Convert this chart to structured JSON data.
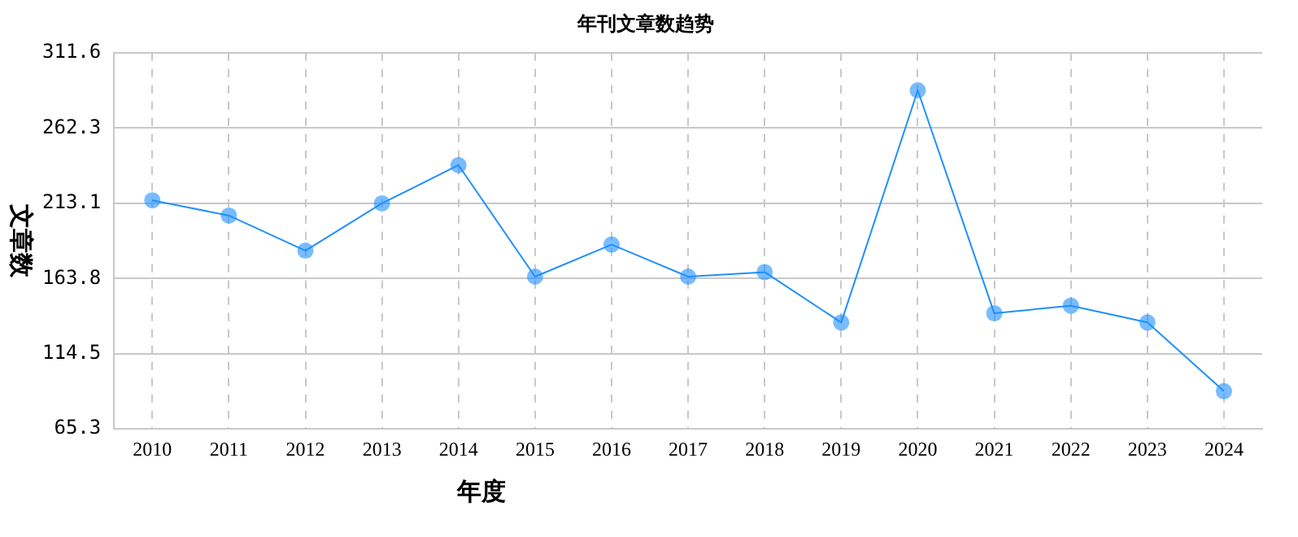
{
  "chart_data": {
    "type": "line",
    "title": "年刊文章数趋势",
    "xlabel": "年度",
    "ylabel": "文章数",
    "categories": [
      "2010",
      "2011",
      "2012",
      "2013",
      "2014",
      "2015",
      "2016",
      "2017",
      "2018",
      "2019",
      "2020",
      "2021",
      "2022",
      "2023",
      "2024"
    ],
    "series": [
      {
        "color": "#1e90ff",
        "values": [
          215,
          205,
          182,
          213,
          238,
          165,
          186,
          165,
          168,
          135,
          287,
          141,
          146,
          135,
          90
        ]
      }
    ],
    "ylim": [
      65.3,
      311.6
    ],
    "yticks": [
      65.3,
      114.5,
      163.8,
      213.1,
      262.3,
      311.6
    ],
    "grid": true,
    "legend": false,
    "marker": "circle",
    "line_style": "solid"
  }
}
